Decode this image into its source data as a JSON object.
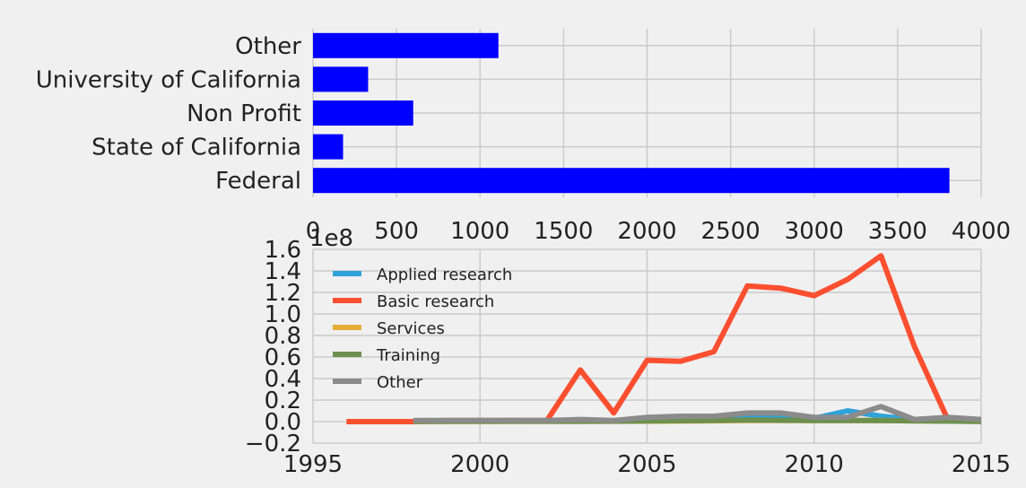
{
  "chart_data": [
    {
      "type": "bar",
      "orientation": "horizontal",
      "categories": [
        "Federal",
        "State of California",
        "Non Profit",
        "University of California",
        "Other"
      ],
      "values": [
        3810,
        180,
        600,
        330,
        1110
      ],
      "xlim": [
        0,
        4000
      ],
      "xticks": [
        "0",
        "500",
        "1000",
        "1500",
        "2000",
        "2500",
        "3000",
        "3500",
        "4000"
      ],
      "grid": true,
      "color": "#0000ff",
      "title": "",
      "xlabel": "",
      "ylabel": ""
    },
    {
      "type": "line",
      "offset_label": "1e8",
      "ylim": [
        -0.2,
        1.6
      ],
      "yticks": [
        "−0.2",
        "0.0",
        "0.2",
        "0.4",
        "0.6",
        "0.8",
        "1.0",
        "1.2",
        "1.4",
        "1.6"
      ],
      "xlim": [
        1995,
        2015
      ],
      "xticks": [
        "1995",
        "2000",
        "2005",
        "2010",
        "2015"
      ],
      "grid": true,
      "legend_position": "upper-left",
      "series": [
        {
          "name": "Applied research",
          "color": "#30a2da",
          "x": [
            1998,
            1999,
            2000,
            2001,
            2002,
            2003,
            2004,
            2005,
            2006,
            2007,
            2008,
            2009,
            2010,
            2011,
            2012,
            2013,
            2014,
            2015
          ],
          "y": [
            0.005,
            0.005,
            0.005,
            0.005,
            0.005,
            0.01,
            0.005,
            0.03,
            0.04,
            0.05,
            0.05,
            0.04,
            0.03,
            0.1,
            0.05,
            0.02,
            0.03,
            0.01
          ]
        },
        {
          "name": "Basic research",
          "color": "#fc4f30",
          "x": [
            1996,
            1997,
            1998,
            1999,
            2000,
            2001,
            2002,
            2003,
            2004,
            2005,
            2006,
            2007,
            2008,
            2009,
            2010,
            2011,
            2012,
            2013,
            2014,
            2015
          ],
          "y": [
            0,
            0,
            0,
            0.01,
            0.01,
            0.01,
            0.01,
            0.48,
            0.08,
            0.57,
            0.56,
            0.65,
            1.26,
            1.24,
            1.17,
            1.32,
            1.54,
            0.7,
            0.02,
            0.01
          ]
        },
        {
          "name": "Services",
          "color": "#e5ae38",
          "x": [
            1998,
            2000,
            2002,
            2004,
            2006,
            2008,
            2010,
            2012,
            2014,
            2015
          ],
          "y": [
            0.002,
            0.002,
            0.003,
            0.003,
            0.005,
            0.01,
            0.01,
            0.01,
            0.005,
            0.002
          ]
        },
        {
          "name": "Training",
          "color": "#6d904f",
          "x": [
            1998,
            2000,
            2002,
            2004,
            2006,
            2008,
            2010,
            2012,
            2014,
            2015
          ],
          "y": [
            0.002,
            0.003,
            0.003,
            0.004,
            0.008,
            0.015,
            0.01,
            0.01,
            0.005,
            0.002
          ]
        },
        {
          "name": "Other",
          "color": "#8b8b8b",
          "x": [
            1998,
            1999,
            2000,
            2001,
            2002,
            2003,
            2004,
            2005,
            2006,
            2007,
            2008,
            2009,
            2010,
            2011,
            2012,
            2013,
            2014,
            2015
          ],
          "y": [
            0.01,
            0.01,
            0.01,
            0.01,
            0.01,
            0.02,
            0.01,
            0.04,
            0.05,
            0.05,
            0.08,
            0.08,
            0.04,
            0.04,
            0.14,
            0.02,
            0.04,
            0.02
          ]
        }
      ]
    }
  ]
}
